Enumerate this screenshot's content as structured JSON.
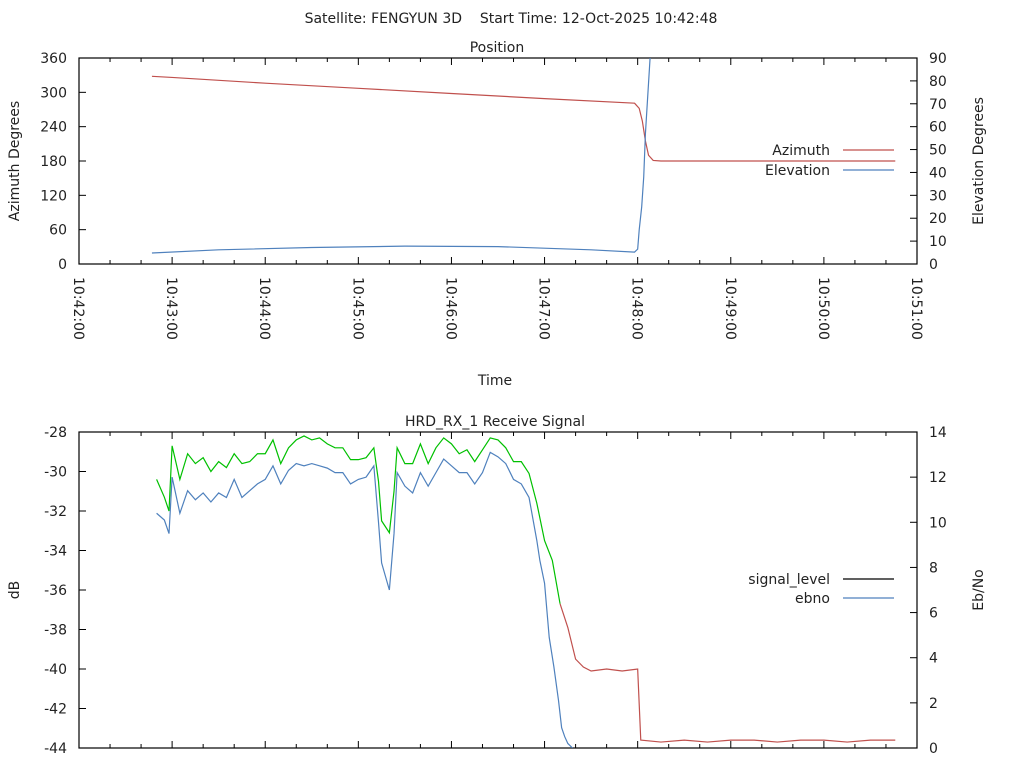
{
  "header": {
    "title": "Satellite: FENGYUN 3D    Start Time: 12-Oct-2025 10:42:48"
  },
  "chart_data": [
    {
      "type": "line",
      "title": "Position",
      "xlabel": "Time",
      "ylabel": "Azimuth Degrees",
      "y2label": "Elevation Degrees",
      "x_unit": "seconds after 10:42:00",
      "xlim": [
        0,
        540
      ],
      "ylim": [
        0,
        360
      ],
      "y2lim": [
        0,
        90
      ],
      "xticks": [
        "10:42:00",
        "10:43:00",
        "10:44:00",
        "10:45:00",
        "10:46:00",
        "10:47:00",
        "10:48:00",
        "10:49:00",
        "10:50:00",
        "10:51:00"
      ],
      "yticks": [
        "0",
        "60",
        "120",
        "180",
        "240",
        "300",
        "360"
      ],
      "y2ticks": [
        "0",
        "10",
        "20",
        "30",
        "40",
        "50",
        "60",
        "70",
        "80",
        "90"
      ],
      "legend_position": "right",
      "series": [
        {
          "name": "Azimuth",
          "axis": "y",
          "color": "#c0504d",
          "points": [
            [
              47,
              328
            ],
            [
              60,
              326
            ],
            [
              120,
              316
            ],
            [
              180,
              307
            ],
            [
              240,
              298
            ],
            [
              300,
              289
            ],
            [
              358,
              281
            ],
            [
              361,
              272
            ],
            [
              363,
              250
            ],
            [
              365,
              215
            ],
            [
              367,
              190
            ],
            [
              370,
              181
            ],
            [
              375,
              180
            ],
            [
              526,
              180
            ]
          ]
        },
        {
          "name": "Elevation",
          "axis": "y2",
          "color": "#4f81bd",
          "points": [
            [
              47,
              4.8
            ],
            [
              90,
              6.2
            ],
            [
              150,
              7.2
            ],
            [
              210,
              7.8
            ],
            [
              270,
              7.6
            ],
            [
              330,
              6.2
            ],
            [
              358,
              5.2
            ],
            [
              360,
              6.5
            ],
            [
              361,
              15
            ],
            [
              362.6,
              25
            ],
            [
              363.9,
              38
            ],
            [
              365,
              57
            ],
            [
              367,
              79
            ],
            [
              368,
              90
            ]
          ]
        }
      ]
    },
    {
      "type": "line",
      "title": "HRD_RX_1 Receive Signal",
      "xlabel": "",
      "ylabel": "dB",
      "y2label": "Eb/No",
      "x_unit": "seconds after 10:42:00",
      "xlim": [
        0,
        540
      ],
      "ylim": [
        -44,
        -28
      ],
      "y2lim": [
        0,
        14
      ],
      "yticks": [
        "-44",
        "-42",
        "-40",
        "-38",
        "-36",
        "-34",
        "-32",
        "-30",
        "-28"
      ],
      "y2ticks": [
        "0",
        "2",
        "4",
        "6",
        "8",
        "10",
        "12",
        "14"
      ],
      "legend_position": "right",
      "series": [
        {
          "name": "signal_level",
          "axis": "y",
          "legend_color": "#000000",
          "color": "#00c000",
          "color_after": "#c0504d",
          "color_change_at": 312,
          "points": [
            [
              50,
              -30.4
            ],
            [
              55,
              -31.3
            ],
            [
              58,
              -32.0
            ],
            [
              60,
              -28.7
            ],
            [
              65,
              -30.4
            ],
            [
              70,
              -29.1
            ],
            [
              75,
              -29.6
            ],
            [
              80,
              -29.3
            ],
            [
              85,
              -30.0
            ],
            [
              90,
              -29.5
            ],
            [
              95,
              -29.8
            ],
            [
              100,
              -29.1
            ],
            [
              105,
              -29.6
            ],
            [
              110,
              -29.5
            ],
            [
              115,
              -29.1
            ],
            [
              120,
              -29.1
            ],
            [
              125,
              -28.4
            ],
            [
              130,
              -29.6
            ],
            [
              135,
              -28.8
            ],
            [
              140,
              -28.4
            ],
            [
              145,
              -28.2
            ],
            [
              150,
              -28.4
            ],
            [
              155,
              -28.3
            ],
            [
              160,
              -28.6
            ],
            [
              165,
              -28.8
            ],
            [
              170,
              -28.8
            ],
            [
              175,
              -29.4
            ],
            [
              180,
              -29.4
            ],
            [
              185,
              -29.3
            ],
            [
              190,
              -28.8
            ],
            [
              193,
              -30.5
            ],
            [
              195,
              -32.5
            ],
            [
              200,
              -33.1
            ],
            [
              203,
              -31.0
            ],
            [
              205,
              -28.8
            ],
            [
              210,
              -29.6
            ],
            [
              215,
              -29.6
            ],
            [
              220,
              -28.6
            ],
            [
              225,
              -29.6
            ],
            [
              230,
              -28.8
            ],
            [
              235,
              -28.3
            ],
            [
              240,
              -28.6
            ],
            [
              245,
              -29.1
            ],
            [
              250,
              -28.9
            ],
            [
              255,
              -29.5
            ],
            [
              260,
              -28.9
            ],
            [
              265,
              -28.3
            ],
            [
              270,
              -28.4
            ],
            [
              275,
              -28.8
            ],
            [
              280,
              -29.5
            ],
            [
              285,
              -29.5
            ],
            [
              290,
              -30.1
            ],
            [
              295,
              -31.6
            ],
            [
              300,
              -33.5
            ],
            [
              305,
              -34.5
            ],
            [
              310,
              -36.7
            ],
            [
              315,
              -37.9
            ],
            [
              320,
              -39.5
            ],
            [
              325,
              -39.9
            ],
            [
              330,
              -40.1
            ],
            [
              340,
              -40.0
            ],
            [
              350,
              -40.1
            ],
            [
              360,
              -40.0
            ],
            [
              362,
              -43.6
            ],
            [
              375,
              -43.7
            ],
            [
              390,
              -43.6
            ],
            [
              405,
              -43.7
            ],
            [
              420,
              -43.6
            ],
            [
              435,
              -43.6
            ],
            [
              450,
              -43.7
            ],
            [
              465,
              -43.6
            ],
            [
              480,
              -43.6
            ],
            [
              495,
              -43.7
            ],
            [
              510,
              -43.6
            ],
            [
              526,
              -43.6
            ]
          ]
        },
        {
          "name": "ebno",
          "axis": "y2",
          "color": "#4f81bd",
          "points": [
            [
              50,
              10.4
            ],
            [
              55,
              10.1
            ],
            [
              58,
              9.5
            ],
            [
              60,
              12.0
            ],
            [
              65,
              10.4
            ],
            [
              70,
              11.4
            ],
            [
              75,
              11.0
            ],
            [
              80,
              11.3
            ],
            [
              85,
              10.9
            ],
            [
              90,
              11.3
            ],
            [
              95,
              11.1
            ],
            [
              100,
              11.9
            ],
            [
              105,
              11.1
            ],
            [
              110,
              11.4
            ],
            [
              115,
              11.7
            ],
            [
              120,
              11.9
            ],
            [
              125,
              12.5
            ],
            [
              130,
              11.7
            ],
            [
              135,
              12.3
            ],
            [
              140,
              12.6
            ],
            [
              145,
              12.5
            ],
            [
              150,
              12.6
            ],
            [
              155,
              12.5
            ],
            [
              160,
              12.4
            ],
            [
              165,
              12.2
            ],
            [
              170,
              12.2
            ],
            [
              175,
              11.7
            ],
            [
              180,
              11.9
            ],
            [
              185,
              12.0
            ],
            [
              190,
              12.5
            ],
            [
              193,
              10.0
            ],
            [
              195,
              8.2
            ],
            [
              200,
              7.0
            ],
            [
              203,
              9.5
            ],
            [
              205,
              12.2
            ],
            [
              210,
              11.6
            ],
            [
              215,
              11.3
            ],
            [
              220,
              12.2
            ],
            [
              225,
              11.6
            ],
            [
              230,
              12.2
            ],
            [
              235,
              12.8
            ],
            [
              240,
              12.5
            ],
            [
              245,
              12.2
            ],
            [
              250,
              12.2
            ],
            [
              255,
              11.7
            ],
            [
              260,
              12.2
            ],
            [
              265,
              13.1
            ],
            [
              270,
              12.9
            ],
            [
              275,
              12.6
            ],
            [
              280,
              11.9
            ],
            [
              285,
              11.7
            ],
            [
              290,
              11.1
            ],
            [
              295,
              9.2
            ],
            [
              297,
              8.3
            ],
            [
              300,
              7.3
            ],
            [
              303,
              4.9
            ],
            [
              306,
              3.6
            ],
            [
              309,
              2.1
            ],
            [
              311,
              0.9
            ],
            [
              313,
              0.5
            ],
            [
              315,
              0.2
            ],
            [
              318,
              0
            ]
          ]
        }
      ]
    }
  ]
}
